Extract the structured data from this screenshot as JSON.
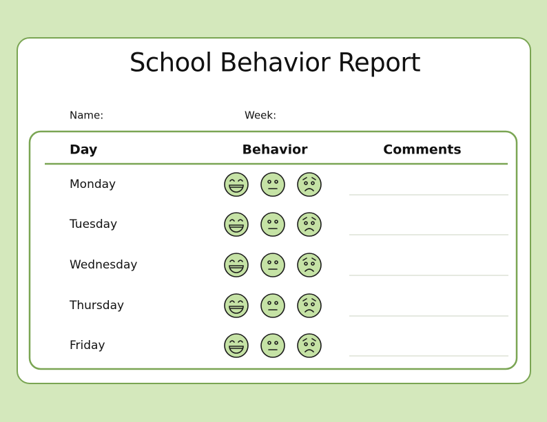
{
  "header": {
    "title": "School Behavior Report"
  },
  "fields": [
    "Name:",
    "Week:"
  ],
  "table": {
    "headers": [
      "Day",
      "Behavior",
      "Comments"
    ],
    "rows": [
      "Monday",
      "Tuesday",
      "Wednesday",
      "Thursday",
      "Friday"
    ]
  }
}
